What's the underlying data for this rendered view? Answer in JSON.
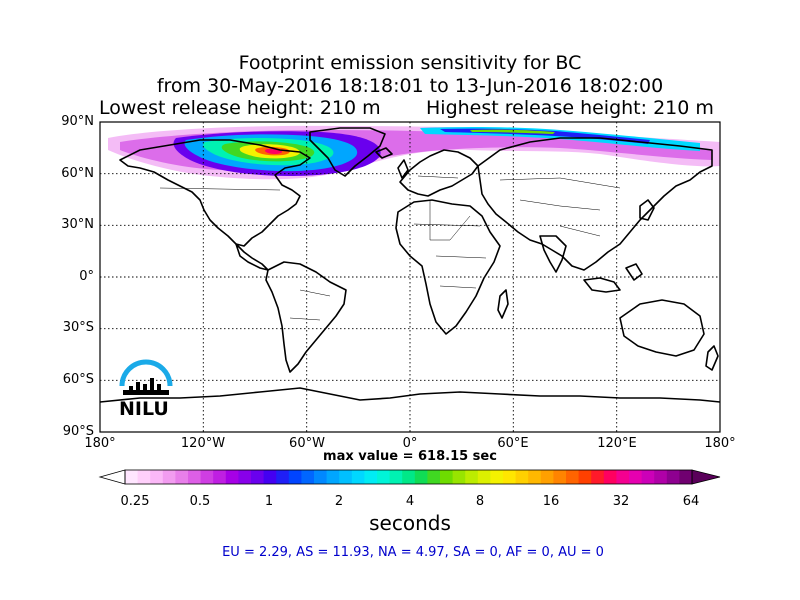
{
  "title": {
    "line1": "Footprint emission sensitivity for BC",
    "line2": "from 30-May-2016 18:18:01 to 13-Jun-2016 18:02:00",
    "line3a": "Lowest release height: 210 m",
    "line3b": "Highest release height: 210 m"
  },
  "axes": {
    "lat_labels": [
      "90°N",
      "60°N",
      "30°N",
      "0°",
      "30°S",
      "60°S",
      "90°S"
    ],
    "lon_labels": [
      "180°",
      "120°W",
      "60°W",
      "0°",
      "60°E",
      "120°E",
      "180°"
    ]
  },
  "max_value": "max value = 618.15 sec",
  "colorbar": {
    "ticks": [
      "0.25",
      "0.5",
      "1",
      "2",
      "4",
      "8",
      "16",
      "32",
      "64"
    ],
    "unit": "seconds",
    "colors": [
      "#ffe6ff",
      "#ffd0fb",
      "#fbb8f7",
      "#f29cf0",
      "#e87fea",
      "#dd5fe6",
      "#cf3ee3",
      "#bf1fe2",
      "#a600e6",
      "#8800ea",
      "#6a00ee",
      "#4400f2",
      "#1f1ff6",
      "#0044ff",
      "#0066ff",
      "#0088ff",
      "#00a6ff",
      "#00c0ff",
      "#00d8ff",
      "#00ecf4",
      "#00f4d8",
      "#00f2b2",
      "#00e888",
      "#10dc55",
      "#40d822",
      "#6edc00",
      "#98e400",
      "#bcec00",
      "#dcf000",
      "#f4f200",
      "#ffe600",
      "#ffd000",
      "#ffb800",
      "#ffa000",
      "#ff8400",
      "#ff6400",
      "#ff4000",
      "#ff1a2a",
      "#ff0060",
      "#f40090",
      "#e600b0",
      "#cc00b8",
      "#b000a8",
      "#8e0090",
      "#700070"
    ]
  },
  "logo": {
    "text": "NILU",
    "accent": "#1aaae8"
  },
  "region_stats": "EU = 2.29,  AS = 11.93,  NA = 4.97,  SA = 0,  AF = 0,  AU = 0"
}
